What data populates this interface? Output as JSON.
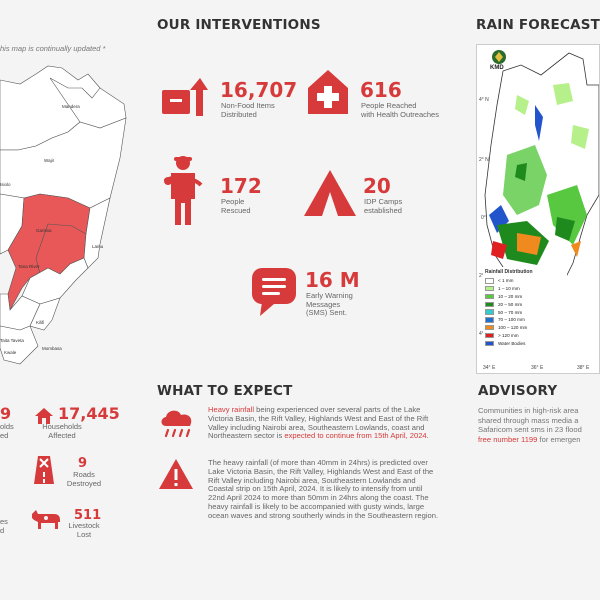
{
  "map_note": "his map is continually updated *",
  "left_map": {
    "labels": [
      "Mandera",
      "Wajir",
      "Garissa",
      "Lamu",
      "Tana River",
      "Kilifi",
      "Kwale",
      "Mombasa",
      "Taita Taveta",
      "Isiolo"
    ]
  },
  "interventions": {
    "title": "OUR INTERVENTIONS",
    "items": [
      {
        "value": "16,707",
        "label": [
          "Non-Food Items",
          "Distributed"
        ]
      },
      {
        "value": "616",
        "label": [
          "People Reached",
          "with Health Outreaches"
        ]
      },
      {
        "value": "172",
        "label": [
          "People",
          "Rescued"
        ]
      },
      {
        "value": "20",
        "label": [
          "IDP Camps",
          "established"
        ]
      },
      {
        "value": "16 M",
        "label": [
          "Early Warning",
          "Messages",
          "(SMS) Sent."
        ]
      }
    ]
  },
  "forecast": {
    "title": "RAIN FORECAST T",
    "agency": "KMD",
    "lat_labels": [
      "4° N",
      "2° N",
      "0°",
      "2° S",
      "4° S"
    ],
    "lon_labels": [
      "34° E",
      "36° E",
      "38° E"
    ],
    "legend_title": "Rainfall Distribution",
    "legend": [
      {
        "label": "< 1 mm",
        "color": "#ffffff"
      },
      {
        "label": "1 – 10 mm",
        "color": "#b6f08a"
      },
      {
        "label": "10 – 20 mm",
        "color": "#58c840"
      },
      {
        "label": "20 – 50 mm",
        "color": "#1e8a1e"
      },
      {
        "label": "50 – 70 mm",
        "color": "#33cccc"
      },
      {
        "label": "70 – 100 mm",
        "color": "#1f6fd0"
      },
      {
        "label": "100 – 120 mm",
        "color": "#f08a1e"
      },
      {
        "label": "> 120 mm",
        "color": "#e02020"
      },
      {
        "label": "Water Bodies",
        "color": "#2255cc"
      }
    ]
  },
  "impacts": {
    "items": [
      {
        "value": "9",
        "label": [
          "olds",
          "ed"
        ]
      },
      {
        "value": "17,445",
        "label": [
          "Households",
          "Affected"
        ]
      },
      {
        "value": "9",
        "label": [
          "Roads",
          "Destroyed"
        ]
      },
      {
        "value": "",
        "label": [
          "es",
          "d"
        ]
      },
      {
        "value": "511",
        "label": [
          "Livestock",
          "Lost"
        ]
      }
    ]
  },
  "expect": {
    "title": "WHAT TO EXPECT",
    "p1": {
      "hl": "Heavy rainfall",
      "body": " being experienced over several parts of the Lake Victoria Basin, the Rift Valley, Highlands West and East of the Rift Valley including Nairobi area, Southeastern Lowlands, coast and Northeastern sector is ",
      "hl2": "expected to continue from 15th April, 2024."
    },
    "p2": "The heavy rainfall (of more than 40mm in 24hrs) is predicted over Lake Victoria Basin, the Rift Valley, Highlands West and East of the Rift Valley including Nairobi area, Southeastern Lowlands and Coastal strip on 15th April, 2024. It is likely to intensify from until 22nd April 2024 to more than 50mm in 24hrs along the coast. The heavy rainfall is likely to be accompanied with gusty winds, large ocean waves and strong southerly winds in the Southeastern region."
  },
  "advisory": {
    "title": "ADVISORY",
    "lines": [
      "Communities in high-risk area",
      "shared through mass media a",
      "Safaricom sent sms in 23 flood"
    ],
    "hl": "free number 1199",
    "tail": " for emergen"
  },
  "colors": {
    "accent": "#d63a3a",
    "map_fill": "#e85858"
  }
}
